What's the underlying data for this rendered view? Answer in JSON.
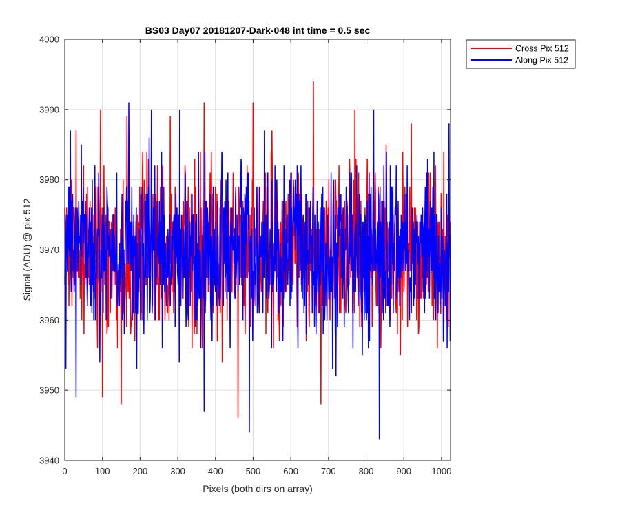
{
  "chart_data": {
    "type": "line",
    "title": "BS03 Day07 20181207-Dark-048 int time = 0.5 sec",
    "xlabel": "Pixels (both dirs on array)",
    "ylabel": "Signal (ADU) @ pix 512",
    "xlim": [
      0,
      1024
    ],
    "ylim": [
      3940,
      4000
    ],
    "xticks": [
      0,
      100,
      200,
      300,
      400,
      500,
      600,
      700,
      800,
      900,
      1000
    ],
    "yticks": [
      3940,
      3950,
      3960,
      3970,
      3980,
      3990,
      4000
    ],
    "grid": true,
    "legend_position": "outside-top-right",
    "noise": {
      "pixel_count": 1024,
      "mean": 3969.5,
      "spread": 7
    },
    "series": [
      {
        "name": "Cross Pix 512",
        "color": "#ff0000",
        "extremes": [
          [
            30,
            3987
          ],
          [
            95,
            3990
          ],
          [
            100,
            3993
          ],
          [
            100,
            3949
          ],
          [
            150,
            3948
          ],
          [
            165,
            3989
          ],
          [
            280,
            3989
          ],
          [
            370,
            3991
          ],
          [
            460,
            3946
          ],
          [
            500,
            3991
          ],
          [
            550,
            3987
          ],
          [
            660,
            3994
          ],
          [
            680,
            3948
          ],
          [
            770,
            3990
          ],
          [
            920,
            3988
          ]
        ]
      },
      {
        "name": "Along Pix 512",
        "color": "#0000ff",
        "extremes": [
          [
            15,
            3987
          ],
          [
            30,
            3949
          ],
          [
            170,
            3991
          ],
          [
            230,
            3990
          ],
          [
            305,
            3990
          ],
          [
            370,
            3947
          ],
          [
            490,
            3944
          ],
          [
            530,
            3987
          ],
          [
            820,
            3990
          ],
          [
            835,
            3943
          ],
          [
            1020,
            3988
          ]
        ]
      }
    ]
  }
}
